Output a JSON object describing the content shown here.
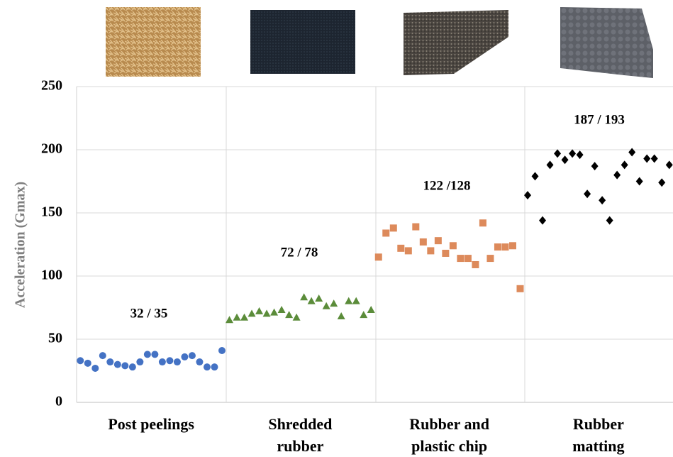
{
  "chart_data": {
    "type": "scatter",
    "y_label": "Acceleration (Gmax)",
    "xlim": [
      -0.5,
      79.5
    ],
    "ylim": [
      0,
      250
    ],
    "yticks": [
      0,
      50,
      100,
      150,
      200,
      250
    ],
    "grid": true,
    "series": [
      {
        "name": "Post peelings",
        "color": "#4472c4",
        "marker": "circle",
        "x": [
          0,
          1,
          2,
          3,
          4,
          5,
          6,
          7,
          8,
          9,
          10,
          11,
          12,
          13,
          14,
          15,
          16,
          17,
          18,
          19
        ],
        "values": [
          33,
          31,
          27,
          37,
          32,
          30,
          29,
          28,
          32,
          38,
          38,
          32,
          33,
          32,
          36,
          37,
          32,
          28,
          28,
          41
        ]
      },
      {
        "name": "Shredded rubber",
        "color": "#5b8c3a",
        "marker": "triangle",
        "x": [
          20,
          21,
          22,
          23,
          24,
          25,
          26,
          27,
          28,
          29,
          30,
          31,
          32,
          33,
          34,
          35,
          36,
          37,
          38,
          39
        ],
        "values": [
          65,
          67,
          67,
          70,
          72,
          70,
          71,
          73,
          69,
          67,
          83,
          80,
          82,
          76,
          78,
          68,
          80,
          80,
          69,
          73
        ]
      },
      {
        "name": "Rubber and plastic chip",
        "color": "#dd8a5b",
        "marker": "square",
        "x": [
          40,
          41,
          42,
          43,
          44,
          45,
          46,
          47,
          48,
          49,
          50,
          51,
          52,
          53,
          54,
          55,
          56,
          57,
          58,
          59
        ],
        "values": [
          115,
          134,
          138,
          122,
          120,
          139,
          127,
          120,
          128,
          118,
          124,
          114,
          114,
          109,
          142,
          114,
          123,
          123,
          124,
          90
        ]
      },
      {
        "name": "Rubber matting",
        "color": "#000000",
        "marker": "diamond",
        "x": [
          60,
          61,
          62,
          63,
          64,
          65,
          66,
          67,
          68,
          69,
          70,
          71,
          72,
          73,
          74,
          75,
          76,
          77,
          78,
          79
        ],
        "values": [
          164,
          179,
          144,
          188,
          197,
          192,
          197,
          196,
          165,
          187,
          160,
          144,
          180,
          188,
          198,
          175,
          193,
          193,
          174,
          188
        ]
      }
    ],
    "annotations": [
      "32 / 35",
      "72 / 78",
      "122 /128",
      "187 / 193"
    ]
  }
}
